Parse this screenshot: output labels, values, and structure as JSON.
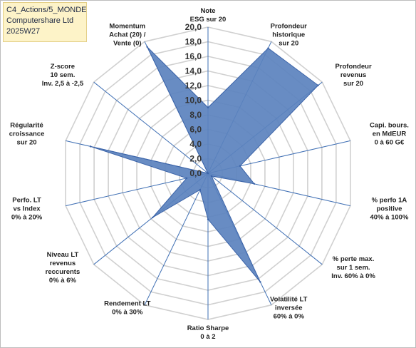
{
  "header": {
    "line1": "C4_Actions/5_MONDE",
    "line2": "Computershare Ltd",
    "line3": "2025W27"
  },
  "chart_data": {
    "type": "radar",
    "r_range": [
      0,
      20
    ],
    "r_ticks": [
      "0,0",
      "2,0",
      "4,0",
      "6,0",
      "8,0",
      "10,0",
      "12,0",
      "14,0",
      "16,0",
      "18,0",
      "20,0"
    ],
    "grid": true,
    "colors": {
      "fill": "#5b82be",
      "stroke": "#3b63a8",
      "grid": "#d0d0d0",
      "spoke": "#3f6fb4"
    },
    "axes": [
      [
        "Note",
        "ESG sur 20"
      ],
      [
        "Profondeur",
        "historique",
        "sur 20"
      ],
      [
        "Profondeur",
        "revenus",
        "sur 20"
      ],
      [
        "Capi. bours.",
        "en MdEUR",
        "0 à 60 G€"
      ],
      [
        "% perfo 1A",
        "positive",
        "40% à 100%"
      ],
      [
        "% perte max.",
        "sur 1 sem.",
        "Inv. 60% à 0%"
      ],
      [
        "Volatilité LT",
        "inversée",
        "60% à 0%"
      ],
      [
        "Ratio Sharpe",
        "0 à 2"
      ],
      [
        "Rendement LT",
        "0% à 30%"
      ],
      [
        "Niveau LT",
        "revenus",
        "reccurents",
        "0% à 6%"
      ],
      [
        "Perfo. LT",
        "vs Index",
        "0% à 20%"
      ],
      [
        "Régularité",
        "croissance",
        "sur 20"
      ],
      [
        "Z-score",
        "10 sem.",
        "Inv. 2,5 à -2,5"
      ],
      [
        "Momentum",
        "Achat (20) /",
        "Vente (0)"
      ]
    ],
    "values": [
      9.0,
      19.0,
      19.3,
      4.5,
      6.5,
      0.6,
      16.5,
      6.3,
      2.5,
      9.7,
      3.0,
      16.5,
      0.0,
      19.2
    ]
  }
}
